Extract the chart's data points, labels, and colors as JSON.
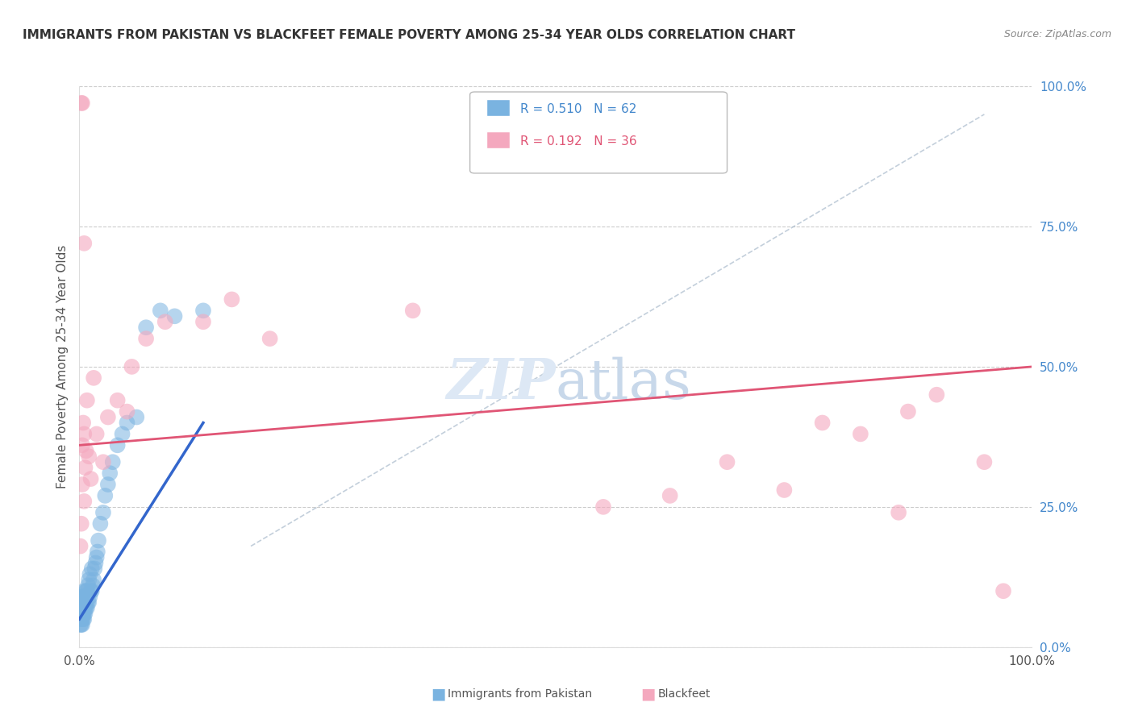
{
  "title": "IMMIGRANTS FROM PAKISTAN VS BLACKFEET FEMALE POVERTY AMONG 25-34 YEAR OLDS CORRELATION CHART",
  "source": "Source: ZipAtlas.com",
  "ylabel": "Female Poverty Among 25-34 Year Olds",
  "xlim": [
    0,
    1
  ],
  "ylim": [
    0,
    1
  ],
  "ytick_labels": [
    "0.0%",
    "25.0%",
    "50.0%",
    "75.0%",
    "100.0%"
  ],
  "ytick_values": [
    0,
    0.25,
    0.5,
    0.75,
    1.0
  ],
  "xtick_labels": [
    "0.0%",
    "100.0%"
  ],
  "xtick_values": [
    0,
    1.0
  ],
  "blue_R": 0.51,
  "blue_N": 62,
  "pink_R": 0.192,
  "pink_N": 36,
  "blue_color": "#7ab3e0",
  "pink_color": "#f4a8be",
  "blue_line_color": "#3366cc",
  "pink_line_color": "#e05575",
  "grid_color": "#cccccc",
  "watermark_color": "#dde8f5",
  "blue_line_x": [
    0.0,
    0.13
  ],
  "blue_line_y": [
    0.05,
    0.4
  ],
  "pink_line_x": [
    0.0,
    1.0
  ],
  "pink_line_y": [
    0.36,
    0.5
  ],
  "dash_line_x": [
    0.18,
    0.95
  ],
  "dash_line_y": [
    0.18,
    0.95
  ],
  "blue_scatter_x": [
    0.001,
    0.001,
    0.001,
    0.001,
    0.001,
    0.002,
    0.002,
    0.002,
    0.002,
    0.002,
    0.002,
    0.003,
    0.003,
    0.003,
    0.003,
    0.003,
    0.004,
    0.004,
    0.004,
    0.004,
    0.005,
    0.005,
    0.005,
    0.005,
    0.006,
    0.006,
    0.006,
    0.007,
    0.007,
    0.007,
    0.008,
    0.008,
    0.009,
    0.009,
    0.01,
    0.01,
    0.011,
    0.011,
    0.012,
    0.013,
    0.013,
    0.014,
    0.015,
    0.016,
    0.017,
    0.018,
    0.019,
    0.02,
    0.022,
    0.025,
    0.027,
    0.03,
    0.032,
    0.035,
    0.04,
    0.045,
    0.05,
    0.06,
    0.07,
    0.085,
    0.1,
    0.13
  ],
  "blue_scatter_y": [
    0.04,
    0.05,
    0.06,
    0.07,
    0.08,
    0.04,
    0.05,
    0.06,
    0.07,
    0.08,
    0.09,
    0.04,
    0.05,
    0.06,
    0.07,
    0.08,
    0.05,
    0.06,
    0.07,
    0.09,
    0.05,
    0.06,
    0.07,
    0.1,
    0.06,
    0.07,
    0.09,
    0.07,
    0.08,
    0.1,
    0.07,
    0.1,
    0.08,
    0.11,
    0.08,
    0.12,
    0.09,
    0.13,
    0.1,
    0.1,
    0.14,
    0.11,
    0.12,
    0.14,
    0.15,
    0.16,
    0.17,
    0.19,
    0.22,
    0.24,
    0.27,
    0.29,
    0.31,
    0.33,
    0.36,
    0.38,
    0.4,
    0.41,
    0.57,
    0.6,
    0.59,
    0.6
  ],
  "pink_scatter_x": [
    0.001,
    0.002,
    0.003,
    0.003,
    0.004,
    0.005,
    0.005,
    0.006,
    0.007,
    0.008,
    0.01,
    0.012,
    0.015,
    0.018,
    0.025,
    0.03,
    0.04,
    0.05,
    0.055,
    0.07,
    0.09,
    0.13,
    0.16,
    0.2,
    0.35,
    0.55,
    0.62,
    0.68,
    0.74,
    0.78,
    0.82,
    0.86,
    0.87,
    0.9,
    0.95,
    0.97
  ],
  "pink_scatter_y": [
    0.18,
    0.22,
    0.29,
    0.36,
    0.4,
    0.26,
    0.38,
    0.32,
    0.35,
    0.44,
    0.34,
    0.3,
    0.48,
    0.38,
    0.33,
    0.41,
    0.44,
    0.42,
    0.5,
    0.55,
    0.58,
    0.58,
    0.62,
    0.55,
    0.6,
    0.25,
    0.27,
    0.33,
    0.28,
    0.4,
    0.38,
    0.24,
    0.42,
    0.45,
    0.33,
    0.1
  ]
}
